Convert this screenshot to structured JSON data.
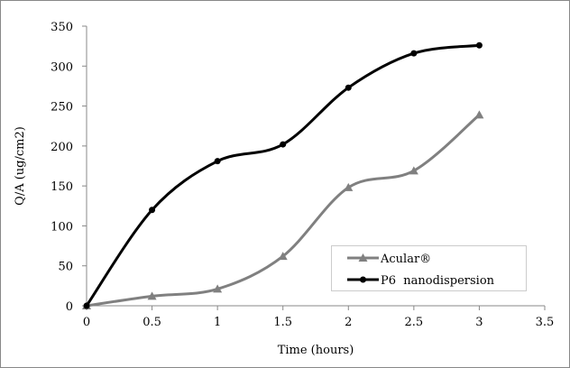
{
  "chart_data": {
    "type": "line",
    "title": "",
    "xlabel": "Time (hours)",
    "ylabel": "Q/A (ug/cm2)",
    "xlim": [
      0,
      3.5
    ],
    "ylim": [
      0,
      350
    ],
    "xticks": [
      0,
      0.5,
      1,
      1.5,
      2,
      2.5,
      3,
      3.5
    ],
    "yticks": [
      0,
      50,
      100,
      150,
      200,
      250,
      300,
      350
    ],
    "grid": false,
    "legend_position": "bottom-right",
    "smooth": true,
    "series": [
      {
        "name": "Acular®",
        "color": "#808080",
        "marker": "triangle",
        "x": [
          0,
          0.5,
          1,
          1.5,
          2,
          2.5,
          3
        ],
        "y": [
          0,
          12,
          21,
          62,
          148,
          169,
          239
        ]
      },
      {
        "name": "P6  nanodispersion",
        "color": "#000000",
        "marker": "circle",
        "x": [
          0,
          0.5,
          1,
          1.5,
          2,
          2.5,
          3
        ],
        "y": [
          0,
          120,
          181,
          202,
          273,
          316,
          326
        ]
      }
    ]
  }
}
